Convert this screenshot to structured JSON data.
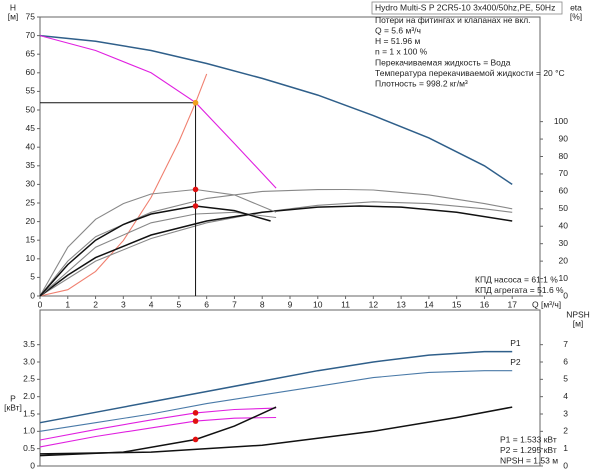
{
  "chart_data": [
    {
      "type": "line",
      "ylabel_lines": [
        "H",
        "[м]"
      ],
      "y2label_lines": [
        "eta",
        "[%]"
      ],
      "xlabel": "Q [м³/ч]",
      "xlim": [
        0,
        18
      ],
      "xticks": [
        0,
        1,
        2,
        3,
        4,
        5,
        6,
        7,
        8,
        9,
        10,
        11,
        12,
        13,
        14,
        15,
        16,
        17
      ],
      "ylim": [
        0,
        75
      ],
      "yticks": [
        0,
        5,
        10,
        15,
        20,
        25,
        30,
        35,
        40,
        45,
        50,
        55,
        60,
        65,
        70,
        75
      ],
      "y2lim": [
        0,
        160
      ],
      "y2ticks": [
        0,
        10,
        20,
        30,
        40,
        50,
        60,
        70,
        80,
        90,
        100
      ],
      "info": [
        "Hydro Multi-S P 2CR5-10 3x400/50hz,PE, 50Hz",
        "Потери на фитингах и клапанах не вкл.",
        "Q = 5.6 м³/ч",
        "H = 51.96 м",
        "n = 1 x 100 %",
        "Перекачиваемая жидкость = Вода",
        "Температура перекачиваемой жидкости = 20 °C",
        "Плотность = 998.2 кг/м³"
      ],
      "readouts": [
        "КПД насоса = 61.1 %",
        "КПД агрегата = 51.6 %"
      ],
      "series": [
        {
          "color": "#2f5f8a",
          "x": [
            0,
            2,
            4,
            6,
            8,
            10,
            12,
            14,
            16,
            17
          ],
          "values": [
            70,
            68.5,
            66,
            62.5,
            58.5,
            54,
            48.5,
            42.5,
            35,
            30
          ]
        },
        {
          "color": "#e020e0",
          "x": [
            0,
            2,
            4,
            5.6,
            7,
            8.5
          ],
          "values": [
            70,
            66,
            60,
            52,
            41,
            29
          ]
        },
        {
          "color": "#f08070",
          "x": [
            0,
            1,
            2,
            3,
            4,
            5,
            5.6,
            6
          ],
          "values": [
            0,
            1.7,
            6.6,
            14.9,
            26.5,
            41.5,
            52,
            59.7
          ]
        },
        {
          "color": "#888888",
          "axis": "y2",
          "x": [
            0,
            1,
            2,
            4,
            6,
            8,
            10,
            11,
            12,
            14,
            16,
            17
          ],
          "values": [
            0,
            20,
            34,
            48,
            56,
            60,
            61,
            61.1,
            60.8,
            58,
            53,
            50
          ]
        },
        {
          "color": "#888888",
          "axis": "y2",
          "x": [
            0,
            2,
            4,
            6,
            8,
            10,
            12,
            14,
            16,
            17
          ],
          "values": [
            0,
            20,
            33,
            42,
            48,
            52,
            54,
            53,
            50,
            48
          ]
        },
        {
          "color": "#111111",
          "axis": "y2",
          "x": [
            0,
            1,
            2,
            4,
            6,
            8,
            10,
            11.5,
            13,
            15,
            17
          ],
          "values": [
            0,
            12,
            22,
            35,
            43,
            48,
            51,
            51.6,
            51,
            48,
            43
          ]
        },
        {
          "color": "#888888",
          "axis": "y2",
          "x": [
            0,
            1,
            2,
            3,
            4,
            5.6,
            7,
            8.5
          ],
          "values": [
            0,
            28,
            44,
            53,
            58.5,
            61.1,
            58,
            48
          ]
        },
        {
          "color": "#888888",
          "axis": "y2",
          "x": [
            0,
            2,
            4,
            5.6,
            7,
            8.5
          ],
          "values": [
            0,
            28,
            42,
            47,
            48,
            45
          ]
        },
        {
          "color": "#111111",
          "axis": "y2",
          "x": [
            0,
            1,
            2,
            3,
            4,
            5.6,
            7,
            8.3
          ],
          "values": [
            0,
            18,
            32,
            41,
            47,
            51.6,
            49,
            43
          ]
        }
      ],
      "markers": [
        {
          "x": 5.6,
          "y": 51.96,
          "color": "#f0a020",
          "guides": true
        },
        {
          "x": 5.6,
          "y": 61.1,
          "axis": "y2",
          "color": "#e01010"
        },
        {
          "x": 5.6,
          "y": 51.6,
          "axis": "y2",
          "color": "#e01010"
        }
      ]
    },
    {
      "type": "line",
      "ylabel_lines": [
        "P",
        "[кВт]"
      ],
      "y2label_lines": [
        "NPSH",
        "[м]"
      ],
      "xlim": [
        0,
        18
      ],
      "ylim": [
        0,
        4.5
      ],
      "yticks": [
        0,
        0.5,
        {
          "value": 1,
          "label": "1.0"
        },
        1.5,
        {
          "value": 2,
          "label": "2.0"
        },
        2.5,
        {
          "value": 3,
          "label": "3.0"
        },
        3.5
      ],
      "y2lim": [
        0,
        9
      ],
      "y2ticks": [
        0,
        1,
        2,
        3,
        4,
        5,
        6,
        7
      ],
      "readouts": [
        "P1 = 1.533 кВт",
        "P2 = 1.295 кВт",
        "NPSH = 1.53 м"
      ],
      "series": [
        {
          "name": "P1",
          "color": "#2f5f8a",
          "x": [
            0,
            2,
            4,
            6,
            8,
            10,
            12,
            14,
            16,
            17
          ],
          "values": [
            1.25,
            1.55,
            1.85,
            2.15,
            2.45,
            2.75,
            3,
            3.2,
            3.3,
            3.3
          ]
        },
        {
          "name": "P2",
          "color": "#4a7aa8",
          "x": [
            0,
            2,
            4,
            6,
            8,
            10,
            12,
            14,
            16,
            17
          ],
          "values": [
            1,
            1.25,
            1.5,
            1.8,
            2.05,
            2.3,
            2.55,
            2.7,
            2.75,
            2.75
          ]
        },
        {
          "color": "#e020e0",
          "x": [
            0,
            2,
            4,
            5.6,
            7,
            8.5
          ],
          "values": [
            0.75,
            1.05,
            1.33,
            1.533,
            1.63,
            1.67
          ]
        },
        {
          "color": "#e020e0",
          "x": [
            0,
            2,
            4,
            5.6,
            7,
            8.5
          ],
          "values": [
            0.55,
            0.85,
            1.1,
            1.295,
            1.38,
            1.4
          ]
        },
        {
          "color": "#111111",
          "axis": "y2",
          "x": [
            0,
            4,
            8,
            12,
            15,
            17
          ],
          "values": [
            0.7,
            0.8,
            1.2,
            2,
            2.8,
            3.4
          ]
        },
        {
          "color": "#111111",
          "axis": "y2",
          "x": [
            0,
            3,
            5.6,
            7,
            8.5
          ],
          "values": [
            0.6,
            0.8,
            1.53,
            2.3,
            3.4
          ]
        }
      ],
      "markers": [
        {
          "x": 5.6,
          "y": 1.533,
          "color": "#e01010"
        },
        {
          "x": 5.6,
          "y": 1.295,
          "color": "#e01010"
        },
        {
          "x": 5.6,
          "y": 1.53,
          "axis": "y2",
          "color": "#e01010"
        }
      ]
    }
  ]
}
